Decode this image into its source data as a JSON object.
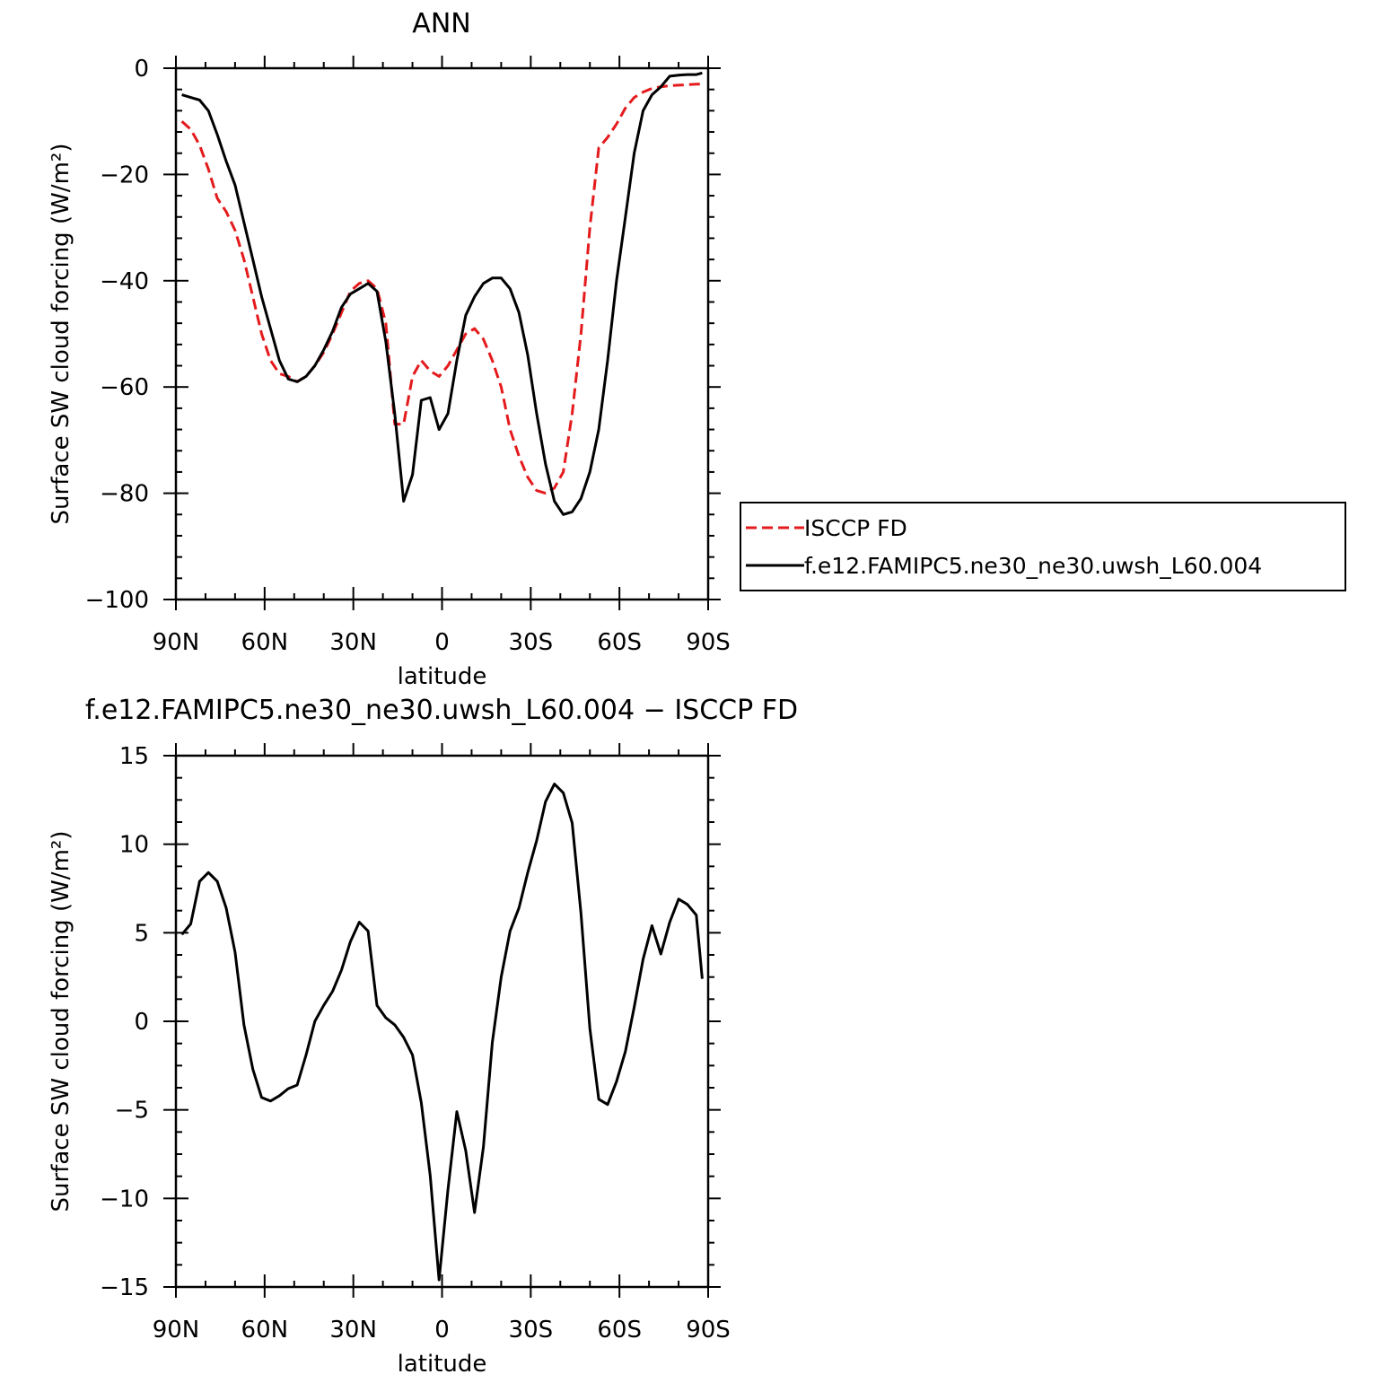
{
  "chart_data": [
    {
      "type": "line",
      "title": "ANN",
      "xlabel": "latitude",
      "ylabel": "Surface SW cloud forcing (W/m²)",
      "xlim": [
        90,
        -90
      ],
      "ylim": [
        -100,
        0
      ],
      "xticks": [
        90,
        60,
        30,
        0,
        -30,
        -60,
        -90
      ],
      "xtick_labels": [
        "90N",
        "60N",
        "30N",
        "0",
        "30S",
        "60S",
        "90S"
      ],
      "yticks": [
        0,
        -20,
        -40,
        -60,
        -80,
        -100
      ],
      "ytick_labels": [
        "0",
        "−20",
        "−40",
        "−60",
        "−80",
        "−100"
      ],
      "grid": false,
      "legend": "right",
      "series": [
        {
          "name": "ISCCP FD",
          "color": "#e41a1c",
          "dash": true,
          "x": [
            88,
            85,
            82,
            79,
            76,
            73,
            70,
            67,
            64,
            61,
            58,
            55,
            52,
            49,
            46,
            43,
            40,
            37,
            34,
            31,
            28,
            25,
            22,
            19,
            16,
            13,
            10,
            7,
            4,
            1,
            -2,
            -5,
            -8,
            -11,
            -14,
            -17,
            -20,
            -23,
            -26,
            -29,
            -32,
            -35,
            -38,
            -41,
            -44,
            -47,
            -50,
            -53,
            -56,
            -59,
            -62,
            -65,
            -68,
            -71,
            -74,
            -77,
            -80,
            -83,
            -86,
            -88
          ],
          "y": [
            -10,
            -11.5,
            -14.5,
            -19,
            -24.5,
            -27,
            -30.5,
            -36,
            -43,
            -50,
            -55,
            -57.5,
            -58,
            -59,
            -58,
            -56,
            -53.5,
            -50,
            -46,
            -42,
            -40.5,
            -40,
            -41.5,
            -48,
            -67,
            -67,
            -58,
            -55,
            -57,
            -58,
            -56,
            -53,
            -50,
            -49,
            -51,
            -55,
            -60,
            -68,
            -73,
            -77,
            -79.5,
            -80,
            -79,
            -76,
            -65,
            -50,
            -30,
            -15,
            -13,
            -10.5,
            -7.5,
            -5.5,
            -4.5,
            -3.8,
            -3.5,
            -3.3,
            -3.2,
            -3.1,
            -3.0,
            -3.0
          ],
          "x_note": ""
        },
        {
          "name": "f.e12.FAMIPC5.ne30_ne30.uwsh_L60.004",
          "color": "#000000",
          "dash": false,
          "x": [
            88,
            85,
            82,
            79,
            76,
            73,
            70,
            67,
            64,
            61,
            58,
            55,
            52,
            49,
            46,
            43,
            40,
            37,
            34,
            31,
            28,
            25,
            22,
            19,
            16,
            13,
            10,
            7,
            4,
            1,
            -2,
            -5,
            -8,
            -11,
            -14,
            -17,
            -20,
            -23,
            -26,
            -29,
            -32,
            -35,
            -38,
            -41,
            -44,
            -47,
            -50,
            -53,
            -56,
            -59,
            -62,
            -65,
            -68,
            -71,
            -74,
            -77,
            -80,
            -83,
            -86,
            -88
          ],
          "y": [
            -5,
            -5.5,
            -6,
            -8,
            -12.5,
            -17.5,
            -22,
            -29,
            -36,
            -43,
            -49,
            -55,
            -58.5,
            -59,
            -58,
            -56,
            -53,
            -49.5,
            -45,
            -42.5,
            -41.5,
            -40.5,
            -42,
            -51.5,
            -65,
            -81.5,
            -76.5,
            -62.5,
            -62,
            -68,
            -65,
            -55,
            -46.5,
            -43,
            -40.5,
            -39.5,
            -39.5,
            -41.5,
            -46,
            -54,
            -65,
            -74.5,
            -81.5,
            -84,
            -83.5,
            -81,
            -76,
            -68,
            -55,
            -40,
            -28,
            -16,
            -8,
            -5,
            -3.5,
            -1.5,
            -1.3,
            -1.2,
            -1.2,
            -0.9
          ],
          "x_note": ""
        }
      ]
    },
    {
      "type": "line",
      "title": "f.e12.FAMIPC5.ne30_ne30.uwsh_L60.004 − ISCCP FD",
      "xlabel": "latitude",
      "ylabel": "Surface SW cloud forcing (W/m²)",
      "xlim": [
        90,
        -90
      ],
      "ylim": [
        -15,
        15
      ],
      "xticks": [
        90,
        60,
        30,
        0,
        -30,
        -60,
        -90
      ],
      "xtick_labels": [
        "90N",
        "60N",
        "30N",
        "0",
        "30S",
        "60S",
        "90S"
      ],
      "yticks": [
        15,
        10,
        5,
        0,
        -5,
        -10,
        -15
      ],
      "ytick_labels": [
        "15",
        "10",
        "5",
        "0",
        "−5",
        "−10",
        "−15"
      ],
      "grid": false,
      "series": [
        {
          "color": "#000000",
          "x": [
            88,
            85,
            82,
            79,
            76,
            73,
            70,
            67,
            64,
            61,
            58,
            55,
            52,
            49,
            46,
            43,
            40,
            37,
            34,
            31,
            28,
            25,
            22,
            19,
            16,
            13,
            10,
            7,
            4,
            1,
            -2,
            -5,
            -8,
            -11,
            -14,
            -17,
            -20,
            -23,
            -26,
            -29,
            -32,
            -35,
            -38,
            -41,
            -44,
            -47,
            -50,
            -53,
            -56,
            -59,
            -62,
            -65,
            -68,
            -71,
            -74,
            -77,
            -80,
            -83,
            -86,
            -88
          ],
          "y": [
            4.9,
            5.5,
            7.9,
            8.4,
            7.9,
            6.4,
            3.9,
            -0.2,
            -2.7,
            -4.3,
            -4.5,
            -4.2,
            -3.8,
            -3.6,
            -1.9,
            0,
            0.9,
            1.7,
            2.9,
            4.5,
            5.6,
            5.1,
            0.9,
            0.2,
            -0.2,
            -0.9,
            -1.9,
            -4.6,
            -8.7,
            -14.6,
            -9.5,
            -5.1,
            -7.3,
            -10.8,
            -7.1,
            -1.2,
            2.5,
            5.1,
            6.4,
            8.4,
            10.2,
            12.4,
            13.4,
            12.9,
            11.2,
            6.1,
            -0.4,
            -4.4,
            -4.7,
            -3.4,
            -1.7,
            0.8,
            3.5,
            5.4,
            3.8,
            5.6,
            6.9,
            6.6,
            6.0,
            2.4
          ]
        }
      ]
    }
  ]
}
